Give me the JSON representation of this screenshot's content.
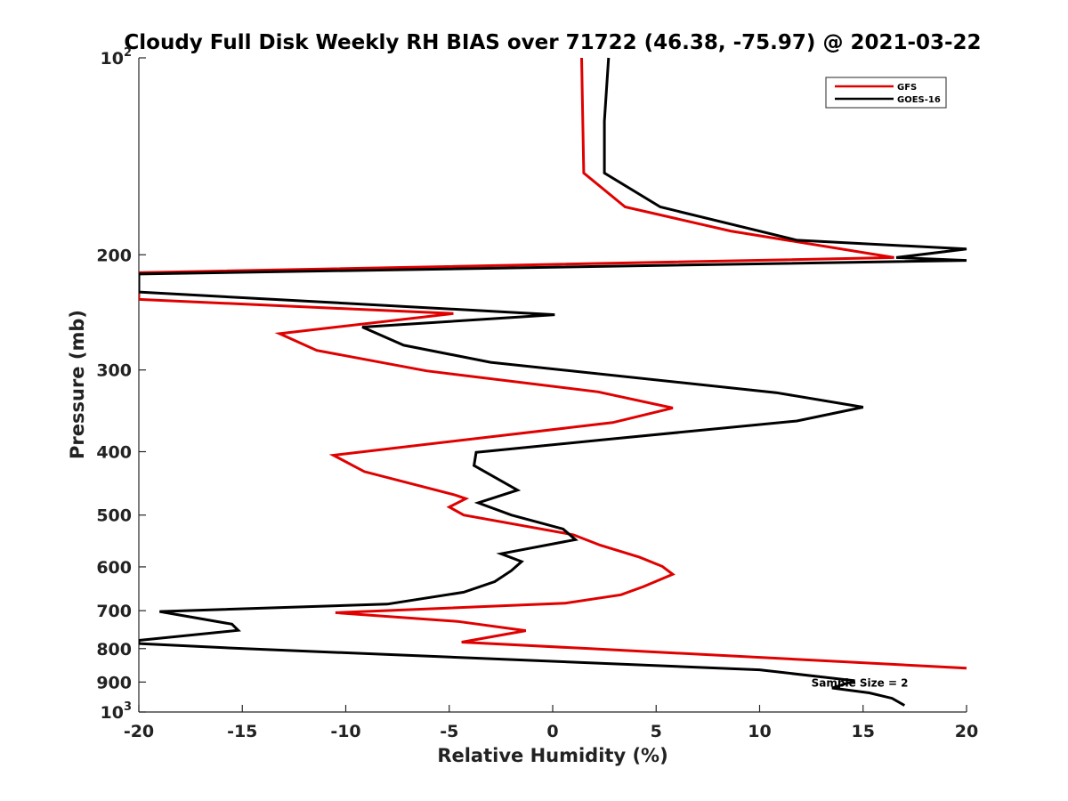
{
  "chart_data": {
    "type": "line",
    "title": "Cloudy Full Disk Weekly RH BIAS over 71722 (46.38, -75.97) @ 2021-03-22",
    "xlabel": "Relative Humidity (%)",
    "ylabel": "Pressure (mb)",
    "xlim": [
      -20,
      20
    ],
    "ylim": [
      100,
      1000
    ],
    "yscale": "log",
    "y_reversed": true,
    "x_ticks": [
      -20,
      -15,
      -10,
      -5,
      0,
      5,
      10,
      15,
      20
    ],
    "x_tick_labels": [
      "-20",
      "-15",
      "-10",
      "-5",
      "0",
      "5",
      "10",
      "15",
      "20"
    ],
    "y_ticks": [
      100,
      200,
      300,
      400,
      500,
      600,
      700,
      800,
      900,
      1000
    ],
    "y_tick_labels": [
      {
        "base": "10",
        "exp": "2"
      },
      {
        "base": "200",
        "exp": ""
      },
      {
        "base": "300",
        "exp": ""
      },
      {
        "base": "400",
        "exp": ""
      },
      {
        "base": "500",
        "exp": ""
      },
      {
        "base": "600",
        "exp": ""
      },
      {
        "base": "700",
        "exp": ""
      },
      {
        "base": "800",
        "exp": ""
      },
      {
        "base": "900",
        "exp": ""
      },
      {
        "base": "10",
        "exp": "3"
      }
    ],
    "legend_position": "top-right",
    "annotation": "Sample Size = 2",
    "annotation_at": {
      "x": 12.5,
      "y": 900
    },
    "series": [
      {
        "name": "GFS",
        "color": "#e00000",
        "points": [
          [
            1.4,
            100
          ],
          [
            1.5,
            150
          ],
          [
            3.5,
            169
          ],
          [
            8.6,
            184
          ],
          [
            16.5,
            202
          ],
          [
            -20,
            213
          ],
          [
            -20,
            228
          ],
          [
            -20,
            234
          ],
          [
            -4.8,
            246
          ],
          [
            -13.2,
            264
          ],
          [
            -11.4,
            280
          ],
          [
            -6.1,
            301
          ],
          [
            2.2,
            324
          ],
          [
            5.8,
            343
          ],
          [
            2.9,
            361
          ],
          [
            -10.6,
            405
          ],
          [
            -9.1,
            429
          ],
          [
            -4.7,
            466
          ],
          [
            -4.2,
            472
          ],
          [
            -5.0,
            486
          ],
          [
            -4.3,
            500
          ],
          [
            1.0,
            536
          ],
          [
            2.3,
            556
          ],
          [
            4.2,
            580
          ],
          [
            5.3,
            599
          ],
          [
            5.8,
            616
          ],
          [
            4.4,
            643
          ],
          [
            3.3,
            662
          ],
          [
            0.6,
            682
          ],
          [
            -10.5,
            705
          ],
          [
            -4.6,
            727
          ],
          [
            -1.3,
            751
          ],
          [
            -4.4,
            782
          ],
          [
            1.8,
            800
          ],
          [
            20,
            857
          ]
        ]
      },
      {
        "name": "GOES-16",
        "color": "#000000",
        "points": [
          [
            2.7,
            100
          ],
          [
            2.5,
            125
          ],
          [
            2.5,
            150
          ],
          [
            5.2,
            169
          ],
          [
            11.8,
            190
          ],
          [
            20,
            196
          ],
          [
            16.6,
            202
          ],
          [
            20,
            204
          ],
          [
            -20,
            214
          ],
          [
            -20,
            225
          ],
          [
            -20,
            228
          ],
          [
            0.1,
            247
          ],
          [
            -9.2,
            258
          ],
          [
            -7.2,
            275
          ],
          [
            -3.0,
            292
          ],
          [
            10.8,
            325
          ],
          [
            15.0,
            342
          ],
          [
            11.8,
            359
          ],
          [
            2.6,
            383
          ],
          [
            -3.7,
            401
          ],
          [
            -3.8,
            420
          ],
          [
            -1.7,
            458
          ],
          [
            -3.6,
            479
          ],
          [
            -2.0,
            500
          ],
          [
            0.5,
            525
          ],
          [
            1.1,
            545
          ],
          [
            -2.5,
            573
          ],
          [
            -1.5,
            589
          ],
          [
            -2.0,
            608
          ],
          [
            -2.8,
            632
          ],
          [
            -4.3,
            656
          ],
          [
            -8.0,
            684
          ],
          [
            -19.0,
            702
          ],
          [
            -15.5,
            734
          ],
          [
            -15.2,
            750
          ],
          [
            -20,
            777
          ],
          [
            -20,
            786
          ],
          [
            -15.3,
            799
          ],
          [
            10.0,
            862
          ],
          [
            14.6,
            896
          ],
          [
            13.5,
            919
          ],
          [
            15.3,
            935
          ],
          [
            16.4,
            953
          ],
          [
            17.0,
            977
          ]
        ]
      }
    ]
  }
}
